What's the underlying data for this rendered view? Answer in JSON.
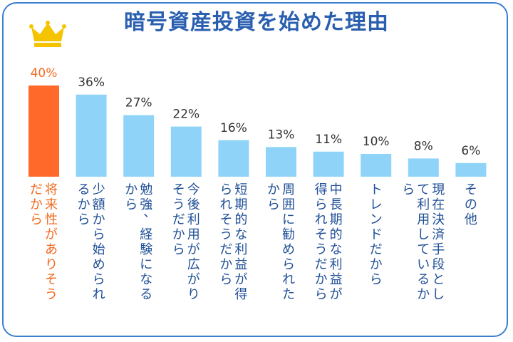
{
  "title": "暗号資産投資を始めた理由",
  "colors": {
    "highlight": "#ff6a2b",
    "bar": "#8fd4f8",
    "title": "#2a5fb0",
    "label": "#1f4f96",
    "highlight_label": "#f26a1f",
    "value": "#333333",
    "crown": "#f5c400"
  },
  "crown_icon": "crown-icon",
  "chart_data": {
    "type": "bar",
    "title": "暗号資産投資を始めた理由",
    "unit": "%",
    "ylim": [
      0,
      40
    ],
    "grid": false,
    "categories": [
      "将来性がありそうだから",
      "少額から始められるから",
      "勉強、経験になるから",
      "今後利用が広がりそうだから",
      "短期的な利益が得られそうだから",
      "周囲に勧められたから",
      "中長期的な利益が得られそうだから",
      "トレンドだから",
      "現在決済手段として利用しているから",
      "その他"
    ],
    "value_labels": [
      "40%",
      "36%",
      "27%",
      "22%",
      "16%",
      "13%",
      "11%",
      "10%",
      "8%",
      "6%"
    ],
    "values": [
      40,
      36,
      27,
      22,
      16,
      13,
      11,
      10,
      8,
      6
    ],
    "highlight_index": 0
  }
}
